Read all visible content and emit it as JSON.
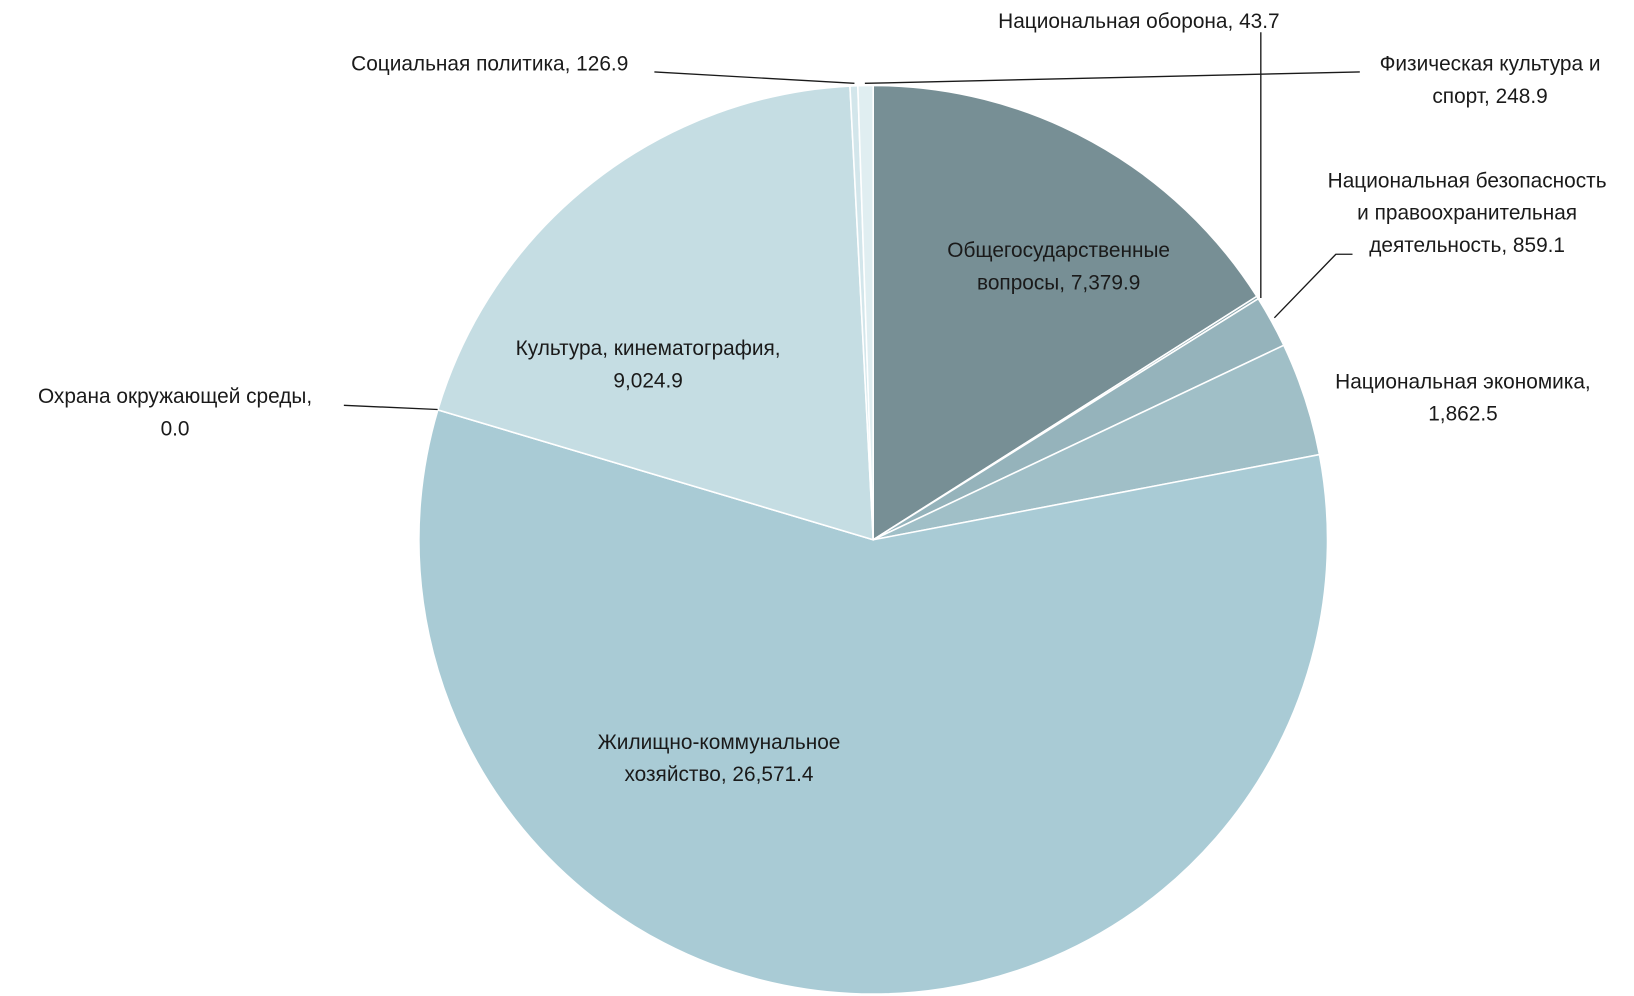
{
  "chart_data": {
    "type": "pie",
    "values": [
      7379.9,
      43.7,
      859.1,
      1862.5,
      26571.4,
      0.0,
      9024.9,
      126.9,
      248.9
    ],
    "value_labels": [
      "Общегосударственные вопросы, 7,379.9",
      "Национальная оборона, 43.7",
      "Национальная безопасность и правоохранительная деятельность, 859.1",
      "Национальная экономика, 1,862.5",
      "Жилищно-коммунальное хозяйство, 26,571.4",
      "Охрана окружающей среды, 0.0",
      "Культура, кинематография, 9,024.9",
      "Социальная политика, 126.9",
      "Физическая культура и спорт, 248.9"
    ],
    "colors": [
      "#778f95",
      "#89a5ac",
      "#95b3bb",
      "#a0bfc7",
      "#a9cbd5",
      "#b6d3db",
      "#c5dde3",
      "#d3e6eb",
      "#e0eef1"
    ]
  }
}
